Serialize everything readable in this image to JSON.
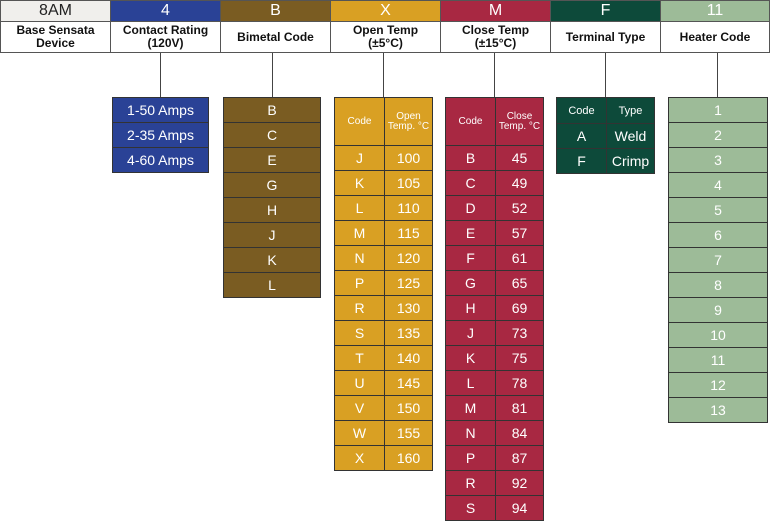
{
  "header": {
    "codes": [
      "8AM",
      "4",
      "B",
      "X",
      "M",
      "F",
      "11"
    ],
    "labels": [
      [
        "Base Sensata",
        "Device"
      ],
      [
        "Contact Rating",
        "(120V)"
      ],
      [
        "Bimetal Code"
      ],
      [
        "Open Temp",
        "(±5°C)"
      ],
      [
        "Close Temp",
        "(±15°C)"
      ],
      [
        "Terminal Type"
      ],
      [
        "Heater Code"
      ]
    ]
  },
  "colors": {
    "base": "#f0efec",
    "contact": "#2a4296",
    "bimetal": "#7a5c22",
    "open": "#d9a023",
    "close": "#a82842",
    "terminal": "#0d4a3a",
    "heater": "#9dbb98"
  },
  "contact_rating": [
    "1-50 Amps",
    "2-35 Amps",
    "4-60 Amps"
  ],
  "bimetal_codes": [
    "B",
    "C",
    "E",
    "G",
    "H",
    "J",
    "K",
    "L"
  ],
  "open_temp": {
    "headers": [
      "Code",
      "Open Temp. °C"
    ],
    "rows": [
      [
        "J",
        "100"
      ],
      [
        "K",
        "105"
      ],
      [
        "L",
        "110"
      ],
      [
        "M",
        "115"
      ],
      [
        "N",
        "120"
      ],
      [
        "P",
        "125"
      ],
      [
        "R",
        "130"
      ],
      [
        "S",
        "135"
      ],
      [
        "T",
        "140"
      ],
      [
        "U",
        "145"
      ],
      [
        "V",
        "150"
      ],
      [
        "W",
        "155"
      ],
      [
        "X",
        "160"
      ]
    ]
  },
  "close_temp": {
    "headers": [
      "Code",
      "Close Temp. °C"
    ],
    "rows": [
      [
        "B",
        "45"
      ],
      [
        "C",
        "49"
      ],
      [
        "D",
        "52"
      ],
      [
        "E",
        "57"
      ],
      [
        "F",
        "61"
      ],
      [
        "G",
        "65"
      ],
      [
        "H",
        "69"
      ],
      [
        "J",
        "73"
      ],
      [
        "K",
        "75"
      ],
      [
        "L",
        "78"
      ],
      [
        "M",
        "81"
      ],
      [
        "N",
        "84"
      ],
      [
        "P",
        "87"
      ],
      [
        "R",
        "92"
      ],
      [
        "S",
        "94"
      ]
    ]
  },
  "terminal_type": {
    "headers": [
      "Code",
      "Type"
    ],
    "rows": [
      [
        "A",
        "Weld"
      ],
      [
        "F",
        "Crimp"
      ]
    ]
  },
  "heater_codes": [
    "1",
    "2",
    "3",
    "4",
    "5",
    "6",
    "7",
    "8",
    "9",
    "10",
    "11",
    "12",
    "13"
  ]
}
